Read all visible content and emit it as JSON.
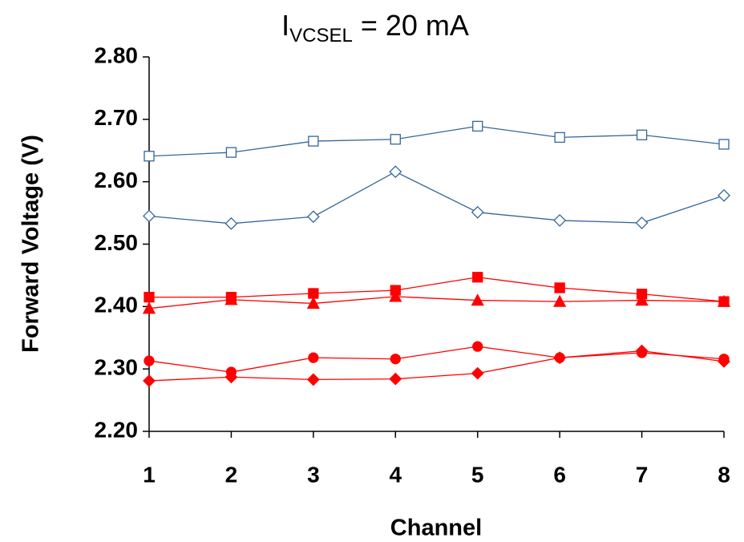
{
  "chart_data": {
    "type": "line",
    "title": {
      "main": "I",
      "subscript": "VCSEL",
      "rest": " = 20 mA"
    },
    "x_label": "Channel",
    "y_label": "Forward Voltage (V)",
    "x": [
      1,
      2,
      3,
      4,
      5,
      6,
      7,
      8
    ],
    "xlim": [
      1,
      8
    ],
    "xticks": [
      1,
      2,
      3,
      4,
      5,
      6,
      7,
      8
    ],
    "ylim": [
      2.2,
      2.8
    ],
    "yticks": [
      {
        "value": 2.2,
        "label": "2.20"
      },
      {
        "value": 2.3,
        "label": "2.30"
      },
      {
        "value": 2.4,
        "label": "2.40"
      },
      {
        "value": 2.5,
        "label": "2.50"
      },
      {
        "value": 2.6,
        "label": "2.60"
      },
      {
        "value": 2.7,
        "label": "2.70"
      },
      {
        "value": 2.8,
        "label": "2.80"
      }
    ],
    "grid": false,
    "series": [
      {
        "color": "#336699",
        "marker": "square",
        "filled": false,
        "values": [
          2.641,
          2.647,
          2.665,
          2.668,
          2.689,
          2.671,
          2.675,
          2.66
        ]
      },
      {
        "color": "#336699",
        "marker": "diamond",
        "filled": false,
        "values": [
          2.545,
          2.533,
          2.544,
          2.616,
          2.551,
          2.538,
          2.534,
          2.578
        ]
      },
      {
        "color": "#ff0000",
        "marker": "square",
        "filled": true,
        "values": [
          2.415,
          2.415,
          2.421,
          2.426,
          2.447,
          2.43,
          2.42,
          2.408
        ]
      },
      {
        "color": "#ff0000",
        "marker": "triangle",
        "filled": true,
        "values": [
          2.397,
          2.411,
          2.405,
          2.416,
          2.41,
          2.408,
          2.41,
          2.408
        ]
      },
      {
        "color": "#ff0000",
        "marker": "circle",
        "filled": true,
        "values": [
          2.313,
          2.295,
          2.318,
          2.316,
          2.336,
          2.318,
          2.326,
          2.316
        ]
      },
      {
        "color": "#ff0000",
        "marker": "diamond",
        "filled": true,
        "values": [
          2.281,
          2.287,
          2.283,
          2.284,
          2.293,
          2.318,
          2.329,
          2.312
        ]
      }
    ]
  }
}
